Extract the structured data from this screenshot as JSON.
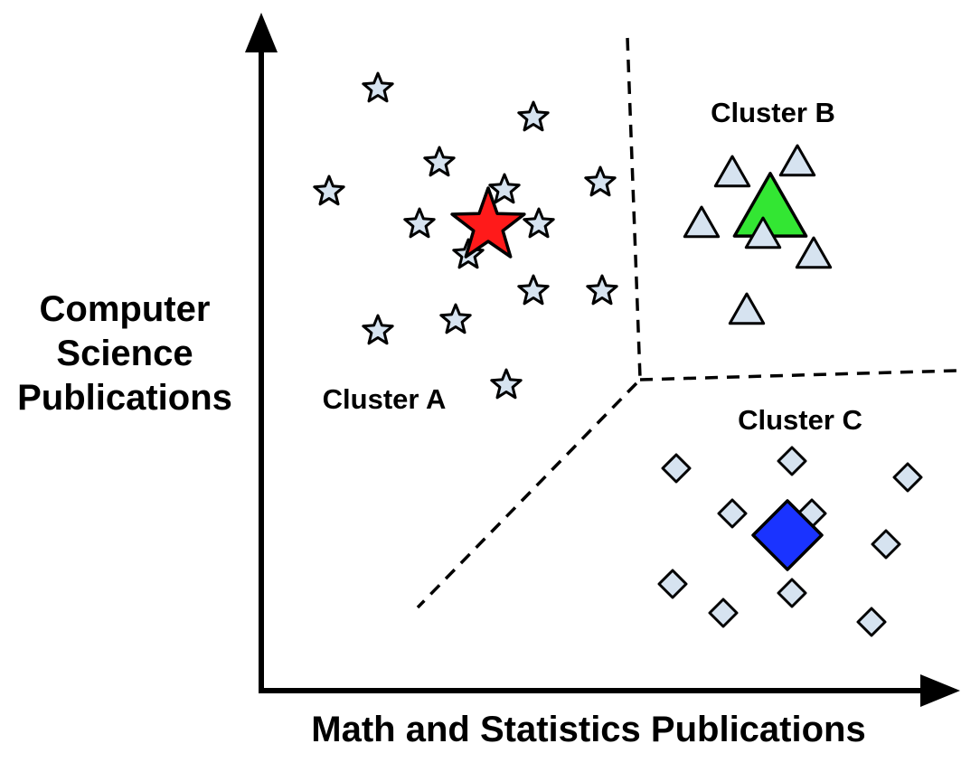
{
  "axes": {
    "x_label": "Math and Statistics Publications",
    "y_label_lines": [
      "Computer",
      "Science",
      "Publications"
    ]
  },
  "clusters": [
    {
      "label": "Cluster A",
      "shape": "star",
      "member_color": "#d6e3f0",
      "centroid_color": "#ff1a1a"
    },
    {
      "label": "Cluster B",
      "shape": "triangle",
      "member_color": "#d6e3f0",
      "centroid_color": "#33e633"
    },
    {
      "label": "Cluster C",
      "shape": "diamond",
      "member_color": "#d6e3f0",
      "centroid_color": "#1a33ff"
    }
  ],
  "colors": {
    "axis": "#000000",
    "outline": "#000000",
    "background": "#ffffff"
  }
}
